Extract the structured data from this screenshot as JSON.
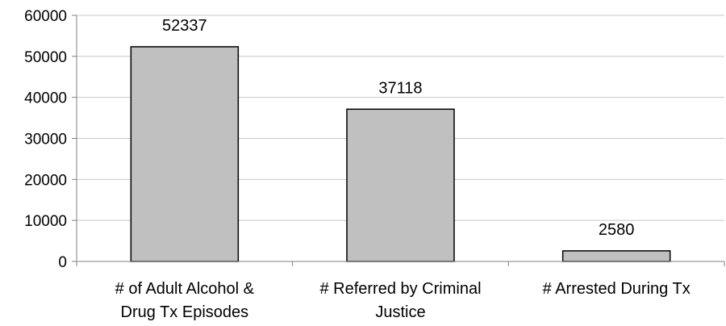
{
  "chart_data": {
    "type": "bar",
    "categories": [
      [
        "# of Adult Alcohol &",
        "Drug Tx Episodes"
      ],
      [
        "# Referred by Criminal",
        "Justice"
      ],
      [
        "# Arrested During Tx"
      ]
    ],
    "values": [
      52337,
      37118,
      2580
    ],
    "data_labels": [
      "52337",
      "37118",
      "2580"
    ],
    "y_ticks": [
      0,
      10000,
      20000,
      30000,
      40000,
      50000,
      60000
    ],
    "ylim": [
      0,
      60000
    ],
    "grid": true,
    "legend": "none",
    "title": "",
    "xlabel": "",
    "ylabel": "",
    "colors": {
      "bar_fill": "#c0c0c0",
      "bar_stroke": "#000000",
      "grid": "#c8c8c8",
      "axis": "#808080"
    }
  }
}
